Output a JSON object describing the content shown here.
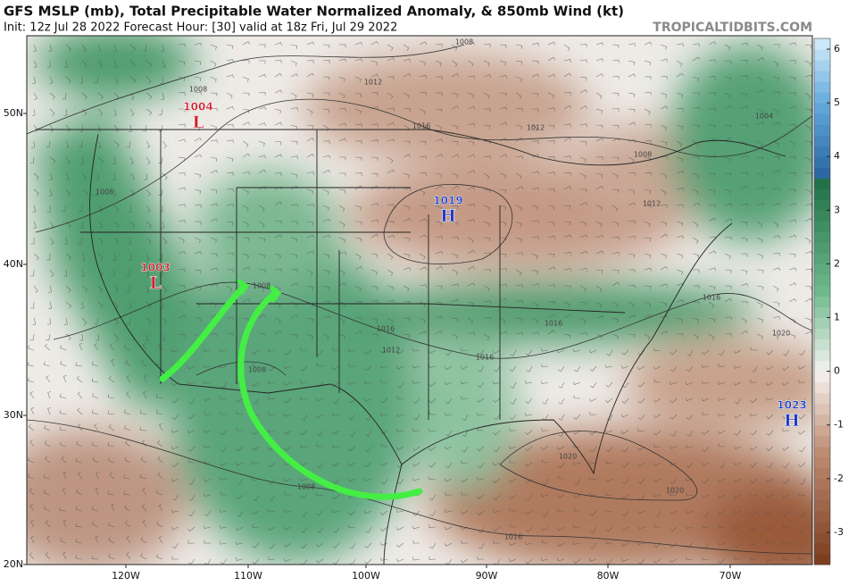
{
  "header": {
    "title": "GFS MSLP (mb), Total Precipitable Water Normalized Anomaly, & 850mb Wind (kt)",
    "subtitle": "Init: 12z Jul 28 2022   Forecast Hour: [30]   valid at 18z Fri, Jul 29 2022",
    "brand": "TROPICALTIDBITS.COM"
  },
  "latitude_labels": [
    "50N",
    "40N",
    "30N",
    "20N"
  ],
  "longitude_labels": [
    "120W",
    "110W",
    "100W",
    "90W",
    "80W",
    "70W"
  ],
  "pressure_centers": [
    {
      "value": "1004",
      "letter": "L"
    },
    {
      "value": "1003",
      "letter": "L"
    },
    {
      "value": "1019",
      "letter": "H"
    },
    {
      "value": "1023",
      "letter": "H"
    }
  ],
  "isobar_labels": [
    "1008",
    "1012",
    "1016",
    "1012",
    "1008",
    "1004",
    "1008",
    "1008",
    "1012",
    "1008",
    "1016",
    "1012",
    "1016",
    "1016",
    "1016",
    "1020",
    "1008",
    "1020",
    "1020",
    "1016",
    "1008"
  ],
  "colorbar": {
    "lim": [
      -3.6,
      6.2
    ],
    "ticks": [
      -3,
      -2,
      -1,
      0,
      1,
      2,
      3,
      4,
      5,
      6
    ]
  }
}
